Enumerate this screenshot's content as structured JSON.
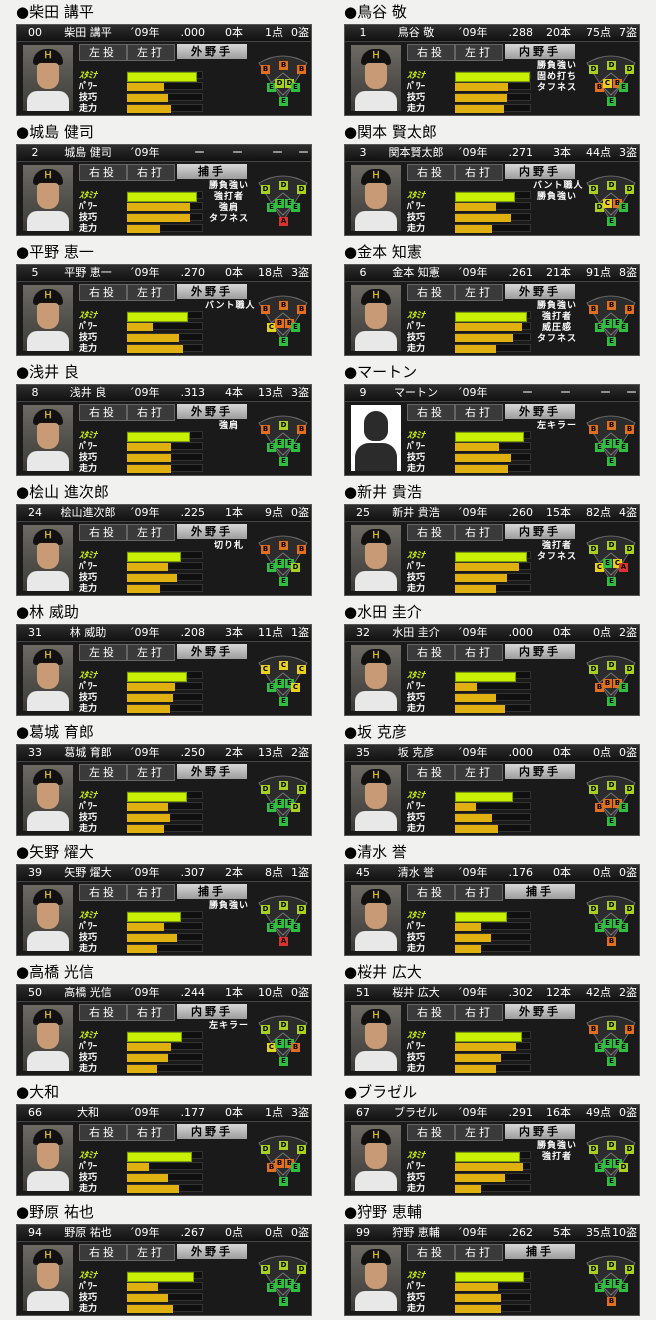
{
  "stat_labels": {
    "stamina": "ｽﾀﾐﾅ",
    "power": "ﾊﾟﾜｰ",
    "skill": "技巧",
    "speed": "走力"
  },
  "grade_colors": {
    "A": "#e03030",
    "B": "#e07020",
    "C": "#e8d020",
    "D": "#a8d020",
    "E": "#30c040"
  },
  "players": [
    {
      "title": "●柴田 講平",
      "num": "00",
      "name": "柴田 講平",
      "year": " ´09年",
      "avg": ".000",
      "hr": "0本",
      "rbi": "1点",
      "sb": "0盗",
      "throw": "左投",
      "bat": "左打",
      "position": "外野手",
      "stats": {
        "stamina": 0.92,
        "power": 0.5,
        "skill": 0.55,
        "speed": 0.6
      },
      "abilities": [],
      "fielding": {
        "lf": "B",
        "cf": "B",
        "rf": "B",
        "ss": "D",
        "b2": "D",
        "b3": "E",
        "b1": "E",
        "p": "E"
      },
      "photo": "player"
    },
    {
      "title": "●鳥谷 敬",
      "num": "1",
      "name": "鳥谷 敬",
      "year": "´09年",
      "avg": ".288",
      "hr": "20本",
      "rbi": "75点",
      "sb": "7盗",
      "throw": "右投",
      "bat": "左打",
      "position": "内野手",
      "stats": {
        "stamina": 0.98,
        "power": 0.72,
        "skill": 0.7,
        "speed": 0.66
      },
      "abilities": [
        "勝負強い",
        "固め打ち",
        "タフネス"
      ],
      "fielding": {
        "lf": "D",
        "cf": "D",
        "rf": "D",
        "ss": "C",
        "b2": "B",
        "b3": "B",
        "b1": "E",
        "p": "E"
      },
      "photo": "player"
    },
    {
      "title": "●城島 健司",
      "num": "2",
      "name": "城島 健司",
      "year": "´09年",
      "avg": "ー",
      "hr": "ー",
      "rbi": "ー",
      "sb": "ー",
      "throw": "右投",
      "bat": "右打",
      "position": "捕手",
      "stats": {
        "stamina": 0.92,
        "power": 0.85,
        "skill": 0.85,
        "speed": 0.45
      },
      "abilities": [
        "勝負強い",
        "強打者",
        "強肩",
        "タフネス"
      ],
      "fielding": {
        "lf": "D",
        "cf": "D",
        "rf": "D",
        "ss": "E",
        "b2": "E",
        "b3": "E",
        "b1": "E",
        "p": "A"
      },
      "photo": "player"
    },
    {
      "title": "●関本 賢太郎",
      "num": "3",
      "name": "関本賢太郎",
      "year": "´09年",
      "avg": ".271",
      "hr": "3本",
      "rbi": "44点",
      "sb": "3盗",
      "throw": "右投",
      "bat": "右打",
      "position": "内野手",
      "stats": {
        "stamina": 0.78,
        "power": 0.55,
        "skill": 0.75,
        "speed": 0.5
      },
      "abilities": [
        "バント職人",
        "勝負強い"
      ],
      "fielding": {
        "lf": "D",
        "cf": "D",
        "rf": "D",
        "ss": "C",
        "b2": "B",
        "b3": "D",
        "b1": "E",
        "p": "E"
      },
      "photo": "player"
    },
    {
      "title": "●平野 恵一",
      "num": "5",
      "name": "平野 恵一",
      "year": "´09年",
      "avg": ".270",
      "hr": "0本",
      "rbi": "18点",
      "sb": "3盗",
      "throw": "右投",
      "bat": "左打",
      "position": "外野手",
      "stats": {
        "stamina": 0.8,
        "power": 0.35,
        "skill": 0.7,
        "speed": 0.75
      },
      "abilities": [
        "バント職人"
      ],
      "fielding": {
        "lf": "B",
        "cf": "B",
        "rf": "B",
        "ss": "B",
        "b2": "B",
        "b3": "C",
        "b1": "E",
        "p": "E"
      },
      "photo": "player"
    },
    {
      "title": "●金本 知憲",
      "num": "6",
      "name": "金本 知憲",
      "year": "´09年",
      "avg": ".261",
      "hr": "21本",
      "rbi": "91点",
      "sb": "8盗",
      "throw": "右投",
      "bat": "左打",
      "position": "外野手",
      "stats": {
        "stamina": 0.95,
        "power": 0.9,
        "skill": 0.78,
        "speed": 0.55
      },
      "abilities": [
        "勝負強い",
        "強打者",
        "威圧感",
        "タフネス"
      ],
      "fielding": {
        "lf": "B",
        "cf": "B",
        "rf": "B",
        "ss": "E",
        "b2": "E",
        "b3": "E",
        "b1": "E",
        "p": "E"
      },
      "photo": "player"
    },
    {
      "title": "●浅井 良",
      "num": "8",
      "name": "浅井 良",
      "year": "´09年",
      "avg": ".313",
      "hr": "4本",
      "rbi": "13点",
      "sb": "3盗",
      "throw": "右投",
      "bat": "右打",
      "position": "外野手",
      "stats": {
        "stamina": 0.82,
        "power": 0.6,
        "skill": 0.6,
        "speed": 0.6
      },
      "abilities": [
        "強肩"
      ],
      "fielding": {
        "lf": "B",
        "cf": "D",
        "rf": "B",
        "ss": "E",
        "b2": "E",
        "b3": "E",
        "b1": "E",
        "p": "E"
      },
      "photo": "player"
    },
    {
      "title": "●マートン",
      "num": "9",
      "name": "マートン",
      "year": "´09年",
      "avg": "ー",
      "hr": "ー",
      "rbi": "ー",
      "sb": "ー",
      "throw": "右投",
      "bat": "右打",
      "position": "外野手",
      "stats": {
        "stamina": 0.9,
        "power": 0.6,
        "skill": 0.75,
        "speed": 0.72
      },
      "abilities": [
        "左キラー"
      ],
      "fielding": {
        "lf": "B",
        "cf": "B",
        "rf": "B",
        "ss": "E",
        "b2": "E",
        "b3": "E",
        "b1": "E",
        "p": "E"
      },
      "photo": "silhouette"
    },
    {
      "title": "●桧山 進次郎",
      "num": "24",
      "name": "桧山進次郎",
      "year": "´09年",
      "avg": ".225",
      "hr": "1本",
      "rbi": "9点",
      "sb": "0盗",
      "throw": "右投",
      "bat": "左打",
      "position": "外野手",
      "stats": {
        "stamina": 0.7,
        "power": 0.55,
        "skill": 0.68,
        "speed": 0.45
      },
      "abilities": [
        "切り札"
      ],
      "fielding": {
        "lf": "B",
        "cf": "B",
        "rf": "B",
        "ss": "E",
        "b2": "E",
        "b3": "E",
        "b1": "D",
        "p": "E"
      },
      "photo": "player"
    },
    {
      "title": "●新井 貴浩",
      "num": "25",
      "name": "新井 貴浩",
      "year": "´09年",
      "avg": ".260",
      "hr": "15本",
      "rbi": "82点",
      "sb": "4盗",
      "throw": "右投",
      "bat": "右打",
      "position": "内野手",
      "stats": {
        "stamina": 0.95,
        "power": 0.86,
        "skill": 0.7,
        "speed": 0.55
      },
      "abilities": [
        "強打者",
        "タフネス"
      ],
      "fielding": {
        "lf": "D",
        "cf": "D",
        "rf": "D",
        "ss": "E",
        "b2": "C",
        "b3": "C",
        "b1": "A",
        "p": "E"
      },
      "photo": "player"
    },
    {
      "title": "●林 威助",
      "num": "31",
      "name": "林 威助",
      "year": "´09年",
      "avg": ".208",
      "hr": "3本",
      "rbi": "11点",
      "sb": "1盗",
      "throw": "左投",
      "bat": "左打",
      "position": "外野手",
      "stats": {
        "stamina": 0.78,
        "power": 0.65,
        "skill": 0.62,
        "speed": 0.58
      },
      "abilities": [],
      "fielding": {
        "lf": "C",
        "cf": "C",
        "rf": "C",
        "ss": "E",
        "b2": "E",
        "b3": "E",
        "b1": "C",
        "p": "E"
      },
      "photo": "player"
    },
    {
      "title": "●水田 圭介",
      "num": "32",
      "name": "水田 圭介",
      "year": "´09年",
      "avg": ".000",
      "hr": "0本",
      "rbi": "0点",
      "sb": "2盗",
      "throw": "右投",
      "bat": "右打",
      "position": "内野手",
      "stats": {
        "stamina": 0.8,
        "power": 0.3,
        "skill": 0.55,
        "speed": 0.68
      },
      "abilities": [],
      "fielding": {
        "lf": "D",
        "cf": "D",
        "rf": "D",
        "ss": "B",
        "b2": "B",
        "b3": "B",
        "b1": "E",
        "p": "E"
      },
      "photo": "player"
    },
    {
      "title": "●葛城 育郎",
      "num": "33",
      "name": "葛城 育郎",
      "year": "´09年",
      "avg": ".250",
      "hr": "2本",
      "rbi": "13点",
      "sb": "2盗",
      "throw": "左投",
      "bat": "左打",
      "position": "外野手",
      "stats": {
        "stamina": 0.78,
        "power": 0.55,
        "skill": 0.58,
        "speed": 0.5
      },
      "abilities": [],
      "fielding": {
        "lf": "D",
        "cf": "D",
        "rf": "D",
        "ss": "E",
        "b2": "E",
        "b3": "E",
        "b1": "D",
        "p": "E"
      },
      "photo": "player"
    },
    {
      "title": "●坂 克彦",
      "num": "35",
      "name": "坂 克彦",
      "year": "´09年",
      "avg": ".000",
      "hr": "0本",
      "rbi": "0点",
      "sb": "0盗",
      "throw": "右投",
      "bat": "左打",
      "position": "内野手",
      "stats": {
        "stamina": 0.75,
        "power": 0.28,
        "skill": 0.5,
        "speed": 0.58
      },
      "abilities": [],
      "fielding": {
        "lf": "D",
        "cf": "D",
        "rf": "D",
        "ss": "B",
        "b2": "B",
        "b3": "B",
        "b1": "E",
        "p": "E"
      },
      "photo": "player"
    },
    {
      "title": "●矢野 燿大",
      "num": "39",
      "name": "矢野 燿大",
      "year": "´09年",
      "avg": ".307",
      "hr": "2本",
      "rbi": "8点",
      "sb": "1盗",
      "throw": "右投",
      "bat": "右打",
      "position": "捕手",
      "stats": {
        "stamina": 0.7,
        "power": 0.5,
        "skill": 0.68,
        "speed": 0.4
      },
      "abilities": [
        "勝負強い"
      ],
      "fielding": {
        "lf": "D",
        "cf": "D",
        "rf": "D",
        "ss": "E",
        "b2": "E",
        "b3": "E",
        "b1": "E",
        "p": "A"
      },
      "photo": "player"
    },
    {
      "title": "●清水 誉",
      "num": "45",
      "name": "清水 誉",
      "year": "´09年",
      "avg": ".176",
      "hr": "0本",
      "rbi": "0点",
      "sb": "0盗",
      "throw": "右投",
      "bat": "右打",
      "position": "捕手",
      "stats": {
        "stamina": 0.68,
        "power": 0.35,
        "skill": 0.48,
        "speed": 0.35
      },
      "abilities": [],
      "fielding": {
        "lf": "D",
        "cf": "D",
        "rf": "D",
        "ss": "E",
        "b2": "E",
        "b3": "E",
        "b1": "E",
        "p": "B"
      },
      "photo": "player"
    },
    {
      "title": "●高橋 光信",
      "num": "50",
      "name": "高橋 光信",
      "year": "´09年",
      "avg": ".244",
      "hr": "1本",
      "rbi": "10点",
      "sb": "0盗",
      "throw": "右投",
      "bat": "右打",
      "position": "内野手",
      "stats": {
        "stamina": 0.72,
        "power": 0.6,
        "skill": 0.55,
        "speed": 0.4
      },
      "abilities": [
        "左キラー"
      ],
      "fielding": {
        "lf": "D",
        "cf": "D",
        "rf": "D",
        "ss": "E",
        "b2": "E",
        "b3": "C",
        "b1": "B",
        "p": "E"
      },
      "photo": "player"
    },
    {
      "title": "●桜井 広大",
      "num": "51",
      "name": "桜井 広大",
      "year": "´09年",
      "avg": ".302",
      "hr": "12本",
      "rbi": "42点",
      "sb": "2盗",
      "throw": "右投",
      "bat": "右打",
      "position": "外野手",
      "stats": {
        "stamina": 0.88,
        "power": 0.82,
        "skill": 0.62,
        "speed": 0.55
      },
      "abilities": [],
      "fielding": {
        "lf": "B",
        "cf": "D",
        "rf": "B",
        "ss": "E",
        "b2": "E",
        "b3": "E",
        "b1": "E",
        "p": "E"
      },
      "photo": "player"
    },
    {
      "title": "●大和",
      "num": "66",
      "name": "大和",
      "year": "´09年",
      "avg": ".177",
      "hr": "0本",
      "rbi": "1点",
      "sb": "3盗",
      "throw": "右投",
      "bat": "右打",
      "position": "内野手",
      "stats": {
        "stamina": 0.85,
        "power": 0.3,
        "skill": 0.55,
        "speed": 0.7
      },
      "abilities": [],
      "fielding": {
        "lf": "D",
        "cf": "D",
        "rf": "D",
        "ss": "B",
        "b2": "B",
        "b3": "B",
        "b1": "E",
        "p": "E"
      },
      "photo": "player"
    },
    {
      "title": "●ブラゼル",
      "num": "67",
      "name": "ブラゼル",
      "year": "´09年",
      "avg": ".291",
      "hr": "16本",
      "rbi": "49点",
      "sb": "0盗",
      "throw": "右投",
      "bat": "左打",
      "position": "内野手",
      "stats": {
        "stamina": 0.85,
        "power": 0.92,
        "skill": 0.68,
        "speed": 0.35
      },
      "abilities": [
        "勝負強い",
        "強打者"
      ],
      "fielding": {
        "lf": "D",
        "cf": "D",
        "rf": "D",
        "ss": "E",
        "b2": "E",
        "b3": "E",
        "b1": "D",
        "p": "E"
      },
      "photo": "player"
    },
    {
      "title": "●野原 祐也",
      "num": "94",
      "name": "野原 祐也",
      "year": "´09年",
      "avg": ".267",
      "hr": "0点",
      "rbi": "0点",
      "sb": "0盗",
      "throw": "右投",
      "bat": "左打",
      "position": "外野手",
      "stats": {
        "stamina": 0.88,
        "power": 0.42,
        "skill": 0.55,
        "speed": 0.62
      },
      "abilities": [],
      "fielding": {
        "lf": "D",
        "cf": "D",
        "rf": "D",
        "ss": "E",
        "b2": "E",
        "b3": "E",
        "b1": "E",
        "p": "E"
      },
      "photo": "player"
    },
    {
      "title": "●狩野 恵輔",
      "num": "99",
      "name": "狩野 恵輔",
      "year": "´09年",
      "avg": ".262",
      "hr": "5本",
      "rbi": "35点",
      "sb": "10盗",
      "throw": "右投",
      "bat": "右打",
      "position": "捕手",
      "stats": {
        "stamina": 0.9,
        "power": 0.58,
        "skill": 0.62,
        "speed": 0.62
      },
      "abilities": [],
      "fielding": {
        "lf": "D",
        "cf": "D",
        "rf": "D",
        "ss": "E",
        "b2": "E",
        "b3": "E",
        "b1": "E",
        "p": "B"
      },
      "photo": "player"
    }
  ]
}
